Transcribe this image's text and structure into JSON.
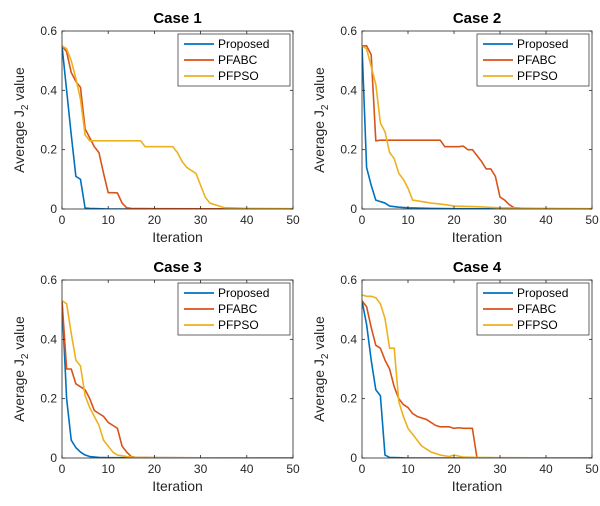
{
  "colors": {
    "Proposed": "#0072BD",
    "PFABC": "#D95319",
    "PFPSO": "#EDB120"
  },
  "chart_data": [
    {
      "type": "line",
      "title": "Case 1",
      "xlabel": "Iteration",
      "ylabel": "Average J",
      "ylabel_sub": "2",
      "ylabel_suffix": " value",
      "xlim": [
        0,
        50
      ],
      "ylim": [
        0,
        0.6
      ],
      "xticks": [
        0,
        10,
        20,
        30,
        40,
        50
      ],
      "yticks": [
        0,
        0.2,
        0.4,
        0.6
      ],
      "ytick_labels": [
        "0",
        "0.2",
        "0.4",
        "0.6"
      ],
      "legend_position": "top-right",
      "series": [
        {
          "name": "Proposed",
          "x": [
            0,
            1,
            2,
            3,
            4,
            5,
            6,
            8,
            10,
            50
          ],
          "y": [
            0.55,
            0.4,
            0.25,
            0.11,
            0.1,
            0.003,
            0.002,
            0.001,
            0.0,
            0.0
          ]
        },
        {
          "name": "PFABC",
          "x": [
            0,
            1,
            2,
            3,
            4,
            5,
            6,
            7,
            8,
            9,
            10,
            11,
            12,
            13,
            14,
            15,
            20,
            50
          ],
          "y": [
            0.55,
            0.53,
            0.46,
            0.43,
            0.41,
            0.27,
            0.24,
            0.21,
            0.19,
            0.12,
            0.055,
            0.055,
            0.054,
            0.02,
            0.004,
            0.002,
            0.001,
            0.0
          ]
        },
        {
          "name": "PFPSO",
          "x": [
            0,
            1,
            2,
            3,
            4,
            5,
            6,
            7,
            10,
            17,
            18,
            23,
            24,
            25,
            26,
            27,
            28,
            29,
            30,
            31,
            32,
            35,
            40,
            50
          ],
          "y": [
            0.55,
            0.54,
            0.5,
            0.44,
            0.37,
            0.25,
            0.23,
            0.23,
            0.23,
            0.23,
            0.21,
            0.21,
            0.21,
            0.19,
            0.16,
            0.14,
            0.13,
            0.12,
            0.08,
            0.04,
            0.02,
            0.005,
            0.002,
            0.001
          ]
        }
      ]
    },
    {
      "type": "line",
      "title": "Case 2",
      "xlabel": "Iteration",
      "ylabel": "Average J",
      "ylabel_sub": "2",
      "ylabel_suffix": " value",
      "xlim": [
        0,
        50
      ],
      "ylim": [
        0,
        0.6
      ],
      "xticks": [
        0,
        10,
        20,
        30,
        40,
        50
      ],
      "yticks": [
        0,
        0.2,
        0.4,
        0.6
      ],
      "ytick_labels": [
        "0",
        "0.2",
        "0.4",
        "0.6"
      ],
      "legend_position": "top-right",
      "series": [
        {
          "name": "Proposed",
          "x": [
            0,
            1,
            2,
            3,
            4,
            5,
            6,
            8,
            10,
            15,
            20,
            50
          ],
          "y": [
            0.55,
            0.14,
            0.08,
            0.03,
            0.025,
            0.02,
            0.01,
            0.006,
            0.004,
            0.002,
            0.001,
            0.0
          ]
        },
        {
          "name": "PFABC",
          "x": [
            0,
            1,
            2,
            3,
            4,
            10,
            17,
            18,
            21,
            22,
            23,
            24,
            25,
            26,
            27,
            28,
            29,
            30,
            31,
            32,
            33,
            35,
            40,
            50
          ],
          "y": [
            0.55,
            0.55,
            0.52,
            0.23,
            0.232,
            0.232,
            0.232,
            0.21,
            0.21,
            0.212,
            0.2,
            0.2,
            0.18,
            0.16,
            0.135,
            0.135,
            0.11,
            0.04,
            0.03,
            0.015,
            0.005,
            0.002,
            0.001,
            0.0
          ]
        },
        {
          "name": "PFPSO",
          "x": [
            0,
            1,
            2,
            3,
            4,
            5,
            6,
            7,
            8,
            9,
            10,
            11,
            13,
            15,
            18,
            20,
            25,
            30,
            40,
            50
          ],
          "y": [
            0.55,
            0.54,
            0.48,
            0.42,
            0.29,
            0.26,
            0.19,
            0.17,
            0.12,
            0.1,
            0.07,
            0.03,
            0.025,
            0.02,
            0.015,
            0.01,
            0.008,
            0.004,
            0.002,
            0.001
          ]
        }
      ]
    },
    {
      "type": "line",
      "title": "Case 3",
      "xlabel": "Iteration",
      "ylabel": "Average J",
      "ylabel_sub": "2",
      "ylabel_suffix": " value",
      "xlim": [
        0,
        50
      ],
      "ylim": [
        0,
        0.6
      ],
      "xticks": [
        0,
        10,
        20,
        30,
        40,
        50
      ],
      "yticks": [
        0,
        0.2,
        0.4,
        0.6
      ],
      "ytick_labels": [
        "0",
        "0.2",
        "0.4",
        "0.6"
      ],
      "legend_position": "top-right",
      "series": [
        {
          "name": "Proposed",
          "x": [
            0,
            1,
            2,
            3,
            4,
            5,
            6,
            8,
            10,
            50
          ],
          "y": [
            0.53,
            0.2,
            0.06,
            0.035,
            0.02,
            0.01,
            0.005,
            0.002,
            0.001,
            0.0
          ]
        },
        {
          "name": "PFABC",
          "x": [
            0,
            1,
            2,
            3,
            4,
            5,
            6,
            7,
            8,
            9,
            10,
            11,
            12,
            13,
            14,
            15,
            16,
            20,
            50
          ],
          "y": [
            0.53,
            0.3,
            0.3,
            0.25,
            0.24,
            0.23,
            0.2,
            0.16,
            0.15,
            0.14,
            0.12,
            0.11,
            0.1,
            0.04,
            0.02,
            0.005,
            0.002,
            0.001,
            0.0
          ]
        },
        {
          "name": "PFPSO",
          "x": [
            0,
            1,
            2,
            3,
            4,
            5,
            6,
            7,
            8,
            9,
            10,
            11,
            12,
            14,
            16,
            20,
            50
          ],
          "y": [
            0.53,
            0.52,
            0.42,
            0.33,
            0.31,
            0.21,
            0.17,
            0.14,
            0.11,
            0.06,
            0.04,
            0.02,
            0.01,
            0.005,
            0.002,
            0.001,
            0.0
          ]
        }
      ]
    },
    {
      "type": "line",
      "title": "Case 4",
      "xlabel": "Iteration",
      "ylabel": "Average J",
      "ylabel_sub": "2",
      "ylabel_suffix": " value",
      "xlim": [
        0,
        50
      ],
      "ylim": [
        0,
        0.6
      ],
      "xticks": [
        0,
        10,
        20,
        30,
        40,
        50
      ],
      "yticks": [
        0,
        0.2,
        0.4,
        0.6
      ],
      "ytick_labels": [
        "0",
        "0.2",
        "0.4",
        "0.6"
      ],
      "legend_position": "top-right",
      "series": [
        {
          "name": "Proposed",
          "x": [
            0,
            1,
            2,
            3,
            4,
            5,
            6,
            8,
            10,
            50
          ],
          "y": [
            0.53,
            0.45,
            0.33,
            0.23,
            0.21,
            0.01,
            0.002,
            0.001,
            0.0,
            0.0
          ]
        },
        {
          "name": "PFABC",
          "x": [
            0,
            1,
            2,
            3,
            4,
            5,
            6,
            7,
            8,
            9,
            10,
            11,
            12,
            13,
            14,
            15,
            16,
            17,
            18,
            19,
            20,
            21,
            22,
            23,
            24,
            25,
            26,
            50
          ],
          "y": [
            0.53,
            0.51,
            0.44,
            0.38,
            0.37,
            0.33,
            0.3,
            0.24,
            0.2,
            0.18,
            0.17,
            0.15,
            0.14,
            0.135,
            0.13,
            0.12,
            0.11,
            0.105,
            0.105,
            0.105,
            0.1,
            0.102,
            0.1,
            0.1,
            0.1,
            0.0,
            0.0,
            0.0
          ]
        },
        {
          "name": "PFPSO",
          "x": [
            0,
            1,
            2,
            3,
            4,
            5,
            6,
            7,
            8,
            9,
            10,
            11,
            12,
            13,
            14,
            15,
            17,
            19,
            20,
            22,
            25,
            30,
            50
          ],
          "y": [
            0.55,
            0.545,
            0.545,
            0.54,
            0.52,
            0.47,
            0.37,
            0.37,
            0.19,
            0.14,
            0.1,
            0.08,
            0.06,
            0.04,
            0.03,
            0.02,
            0.01,
            0.005,
            0.01,
            0.003,
            0.002,
            0.001,
            0.0
          ]
        }
      ]
    }
  ]
}
